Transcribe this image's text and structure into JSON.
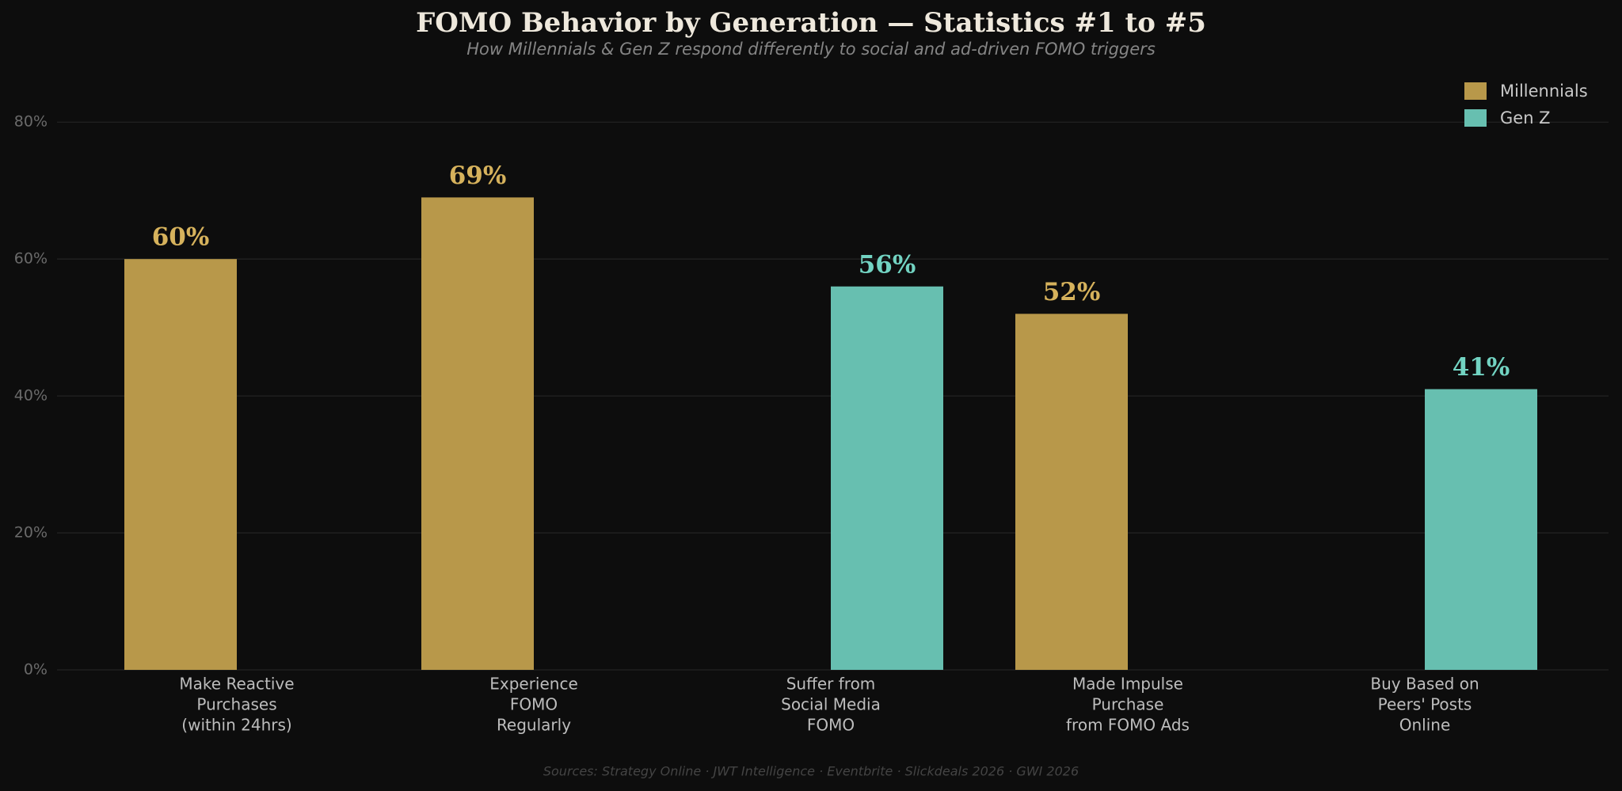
{
  "chart_data": {
    "type": "bar",
    "title": "FOMO Behavior by Generation — Statistics #1 to #5",
    "subtitle": "How Millennials & Gen Z respond differently to social and ad-driven FOMO triggers",
    "source": "Sources: Strategy Online · JWT Intelligence · Eventbrite · Slickdeals 2026 · GWI 2026",
    "categories": [
      [
        "Make Reactive",
        "Purchases",
        "(within 24hrs)"
      ],
      [
        "Experience",
        "FOMO",
        "Regularly"
      ],
      [
        "Suffer from",
        "Social Media",
        "FOMO"
      ],
      [
        "Made Impulse",
        "Purchase",
        "from FOMO Ads"
      ],
      [
        "Buy Based on",
        "Peers' Posts",
        "Online"
      ]
    ],
    "series": [
      {
        "name": "Millennials",
        "color": "#b8984a",
        "values": [
          60,
          69,
          null,
          52,
          null
        ],
        "value_labels": [
          "60%",
          "69%",
          null,
          "52%",
          null
        ]
      },
      {
        "name": "Gen Z",
        "color": "#67bfb0",
        "values": [
          null,
          null,
          56,
          null,
          41
        ],
        "value_labels": [
          null,
          null,
          "56%",
          null,
          "41%"
        ]
      }
    ],
    "ylim": [
      0,
      85
    ],
    "yticks": [
      {
        "value": 0,
        "label": "0%"
      },
      {
        "value": 20,
        "label": "20%"
      },
      {
        "value": 40,
        "label": "40%"
      },
      {
        "value": 60,
        "label": "60%"
      },
      {
        "value": 80,
        "label": "80%"
      }
    ],
    "grid": true,
    "legend": "upper right"
  }
}
